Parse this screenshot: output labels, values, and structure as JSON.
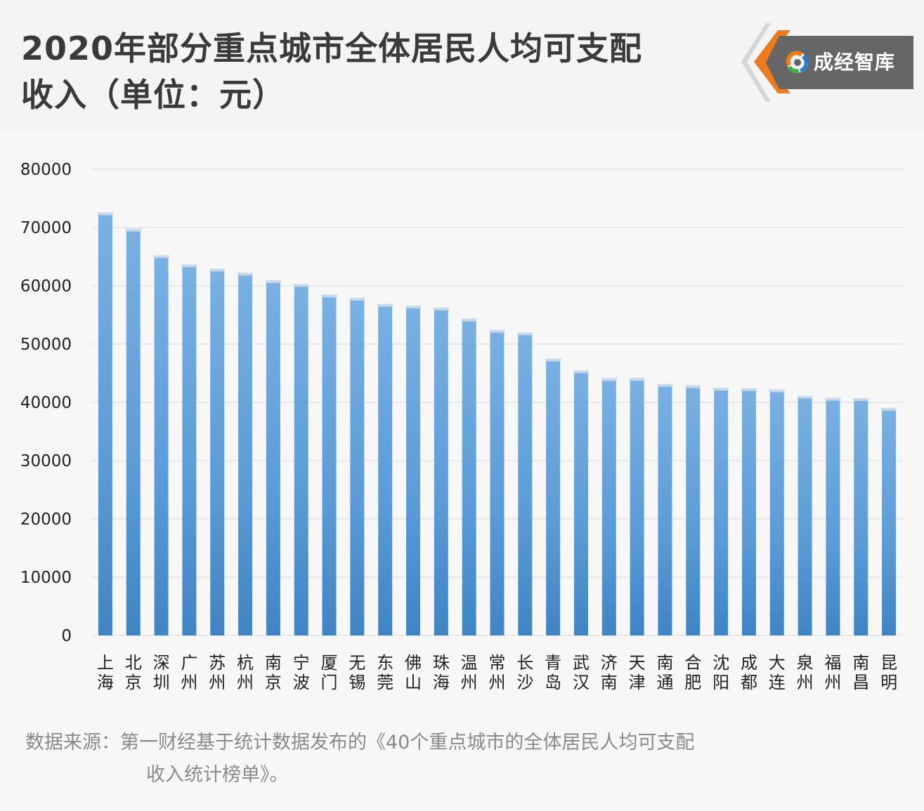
{
  "title_line1": "2020年部分重点城市全体居民人均可支配",
  "title_line2": "收入（单位：元）",
  "logo": {
    "text": "成经智库",
    "icon": "swirl-logo-icon"
  },
  "source": {
    "label": "数据来源：",
    "text_line1": "第一财经基于统计数据发布的《40个重点城市的全体居民人均可支配",
    "text_line2": "收入统计榜单》。"
  },
  "colors": {
    "bar_light": "#79aee0",
    "bar_dark": "#3f84c4",
    "grid": "#e2e2e8",
    "logo_orange": "#ee7a1e",
    "logo_gray": "#6a6a6a"
  },
  "chart_data": {
    "type": "bar",
    "title": "2020年部分重点城市全体居民人均可支配收入（单位：元）",
    "xlabel": "",
    "ylabel": "",
    "ylim": [
      0,
      80000
    ],
    "yticks": [
      "0",
      "10000",
      "20000",
      "30000",
      "40000",
      "50000",
      "60000",
      "70000",
      "80000"
    ],
    "grid": true,
    "legend": "none",
    "categories": [
      "上海",
      "北京",
      "深圳",
      "广州",
      "苏州",
      "杭州",
      "南京",
      "宁波",
      "厦门",
      "无锡",
      "东莞",
      "佛山",
      "珠海",
      "温州",
      "常州",
      "长沙",
      "青岛",
      "武汉",
      "济南",
      "天津",
      "南通",
      "合肥",
      "沈阳",
      "成都",
      "大连",
      "泉州",
      "福州",
      "南昌",
      "昆明"
    ],
    "values": [
      72232,
      69434,
      64878,
      63289,
      62582,
      61879,
      60606,
      59952,
      58140,
      57589,
      56533,
      56245,
      55910,
      54025,
      52080,
      51642,
      47156,
      45135,
      43800,
      43854,
      42798,
      42567,
      42148,
      42075,
      41850,
      40783,
      40423,
      40367,
      38700
    ]
  }
}
